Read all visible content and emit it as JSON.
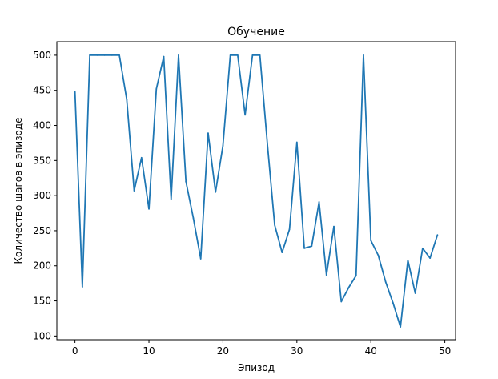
{
  "chart_data": {
    "type": "line",
    "title": "Обучение",
    "xlabel": "Эпизод",
    "ylabel": "Количество шагов в эпизоде",
    "xlim": [
      -2.45,
      51.45
    ],
    "ylim": [
      94.7,
      519.3
    ],
    "xticks": [
      0,
      10,
      20,
      30,
      40,
      50
    ],
    "yticks": [
      100,
      150,
      200,
      250,
      300,
      350,
      400,
      450,
      500
    ],
    "grid": false,
    "line_color": "#1f77b4",
    "series": [
      {
        "x": [
          0,
          1,
          2,
          3,
          4,
          5,
          6,
          7,
          8,
          9,
          10,
          11,
          12,
          13,
          14,
          15,
          16,
          17,
          18,
          19,
          20,
          21,
          22,
          23,
          24,
          25,
          26,
          27,
          28,
          29,
          30,
          31,
          32,
          33,
          34,
          35,
          36,
          37,
          38,
          39,
          40,
          41,
          42,
          43,
          44,
          45,
          46,
          47,
          48,
          49
        ],
        "values": [
          448,
          170,
          500,
          500,
          500,
          500,
          500,
          437,
          307,
          354,
          281,
          452,
          498,
          295,
          500,
          320,
          268,
          210,
          389,
          305,
          371,
          500,
          500,
          415,
          500,
          500,
          375,
          258,
          219,
          252,
          376,
          225,
          228,
          291,
          187,
          256,
          149,
          169,
          186,
          500,
          236,
          215,
          177,
          147,
          113,
          208,
          161,
          225,
          211,
          244
        ]
      }
    ]
  }
}
